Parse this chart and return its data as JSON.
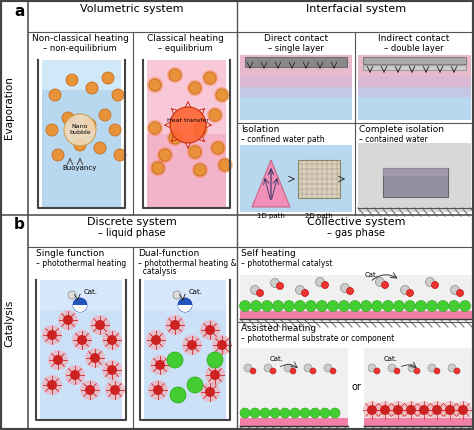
{
  "label_a": "a",
  "label_b": "b",
  "evaporation_label": "Evaporation",
  "catalysis_label": "Catalysis",
  "vol_system": "Volumetric system",
  "int_system": "Interfacial system",
  "disc_system": "Discrete system",
  "disc_sub": "– liquid phase",
  "coll_system": "Collective system",
  "coll_sub": "– gas phase",
  "non_classical_1": "Non-classical heating",
  "non_classical_2": "– non-equilibrium",
  "classical_1": "Classical heating",
  "classical_2": "– equilibrium",
  "direct_1": "Direct contact",
  "direct_2": "– single layer",
  "indirect_1": "Indirect contact",
  "indirect_2": "– double layer",
  "isolation_1": "Isolation",
  "isolation_2": "– confined water path",
  "complete_iso_1": "Complete isolation",
  "complete_iso_2": "– contained water",
  "single_func_1": "Single function",
  "single_func_2": "– photothermal heating",
  "dual_func_1": "Dual-function",
  "dual_func_2": "– photothermal heating &",
  "dual_func_3": "  catalysis",
  "self_heating_1": "Self heating",
  "self_heating_2": "– photothermal catalyst",
  "assisted_1": "Assisted heating",
  "assisted_2": "– photothermal substrate or component",
  "nano_bubble": "Nano\nbubble",
  "buoyancy": "Buoyancy",
  "heat_transfer": "Heat transfer",
  "path_1d": "1D path",
  "path_2d": "2D path",
  "cat_label": "Cat.",
  "or_label": "or"
}
